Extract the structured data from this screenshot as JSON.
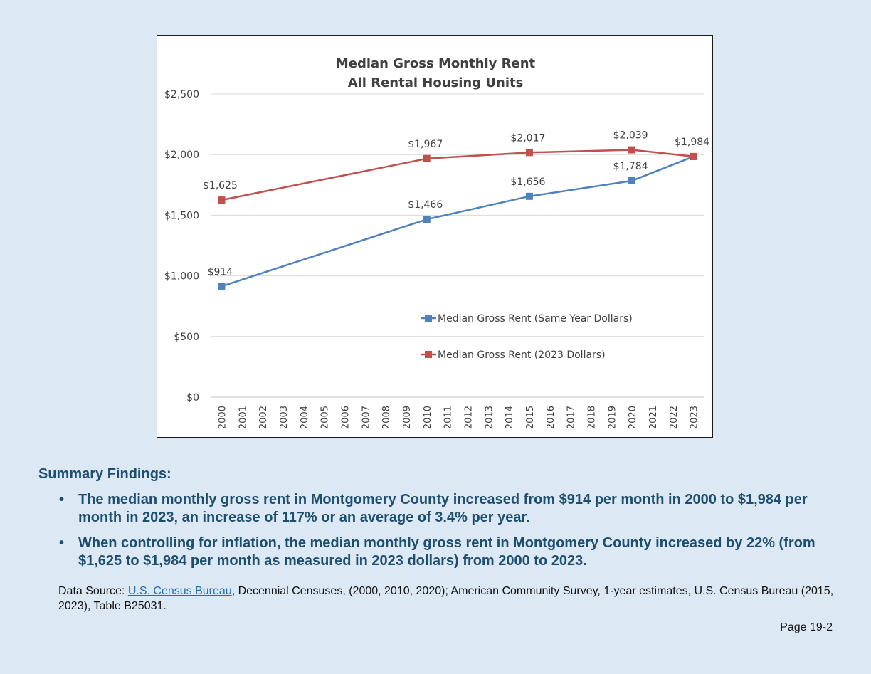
{
  "chart_data": {
    "type": "line",
    "title": [
      "Median Gross Monthly Rent",
      "All Rental Housing Units"
    ],
    "x": [
      2000,
      2001,
      2002,
      2003,
      2004,
      2005,
      2006,
      2007,
      2008,
      2009,
      2010,
      2011,
      2012,
      2013,
      2014,
      2015,
      2016,
      2017,
      2018,
      2019,
      2020,
      2021,
      2022,
      2023
    ],
    "xlabel": "",
    "ylabel": "",
    "ylim": [
      0,
      2500
    ],
    "yticks": [
      0,
      500,
      1000,
      1500,
      2000,
      2500
    ],
    "ytick_labels": [
      "$0",
      "$500",
      "$1,000",
      "$1,500",
      "$2,000",
      "$2,500"
    ],
    "grid": "horizontal",
    "legend_position": "inside, lower right",
    "series": [
      {
        "name": "Median Gross Rent (Same Year Dollars)",
        "color": "#4f81bd",
        "points": [
          {
            "x": 2000,
            "y": 914,
            "label": "$914"
          },
          {
            "x": 2010,
            "y": 1466,
            "label": "$1,466"
          },
          {
            "x": 2015,
            "y": 1656,
            "label": "$1,656"
          },
          {
            "x": 2020,
            "y": 1784,
            "label": "$1,784"
          },
          {
            "x": 2023,
            "y": 1984,
            "label": ""
          }
        ]
      },
      {
        "name": "Median Gross Rent (2023 Dollars)",
        "color": "#c0504d",
        "points": [
          {
            "x": 2000,
            "y": 1625,
            "label": "$1,625"
          },
          {
            "x": 2010,
            "y": 1967,
            "label": "$1,967"
          },
          {
            "x": 2015,
            "y": 2017,
            "label": "$2,017"
          },
          {
            "x": 2020,
            "y": 2039,
            "label": "$2,039"
          },
          {
            "x": 2023,
            "y": 1984,
            "label": "$1,984"
          }
        ]
      }
    ]
  },
  "findings": {
    "heading": "Summary Findings:",
    "bullet_symbol": "•",
    "items": [
      "The median monthly gross rent in Montgomery County increased from $914 per month in 2000 to $1,984 per month in 2023, an increase of 117% or an average of 3.4% per year.",
      "When controlling for inflation, the median monthly gross rent in Montgomery County increased by 22% (from $1,625 to $1,984 per month as measured in 2023 dollars) from 2000 to 2023."
    ]
  },
  "source": {
    "prefix": "Data Source: ",
    "link_text": "U.S. Census Bureau",
    "rest": ", Decennial Censuses, (2000, 2010, 2020); American Community Survey, 1-year estimates, U.S. Census Bureau (2015, 2023), Table B25031."
  },
  "page_number": "Page 19-2"
}
